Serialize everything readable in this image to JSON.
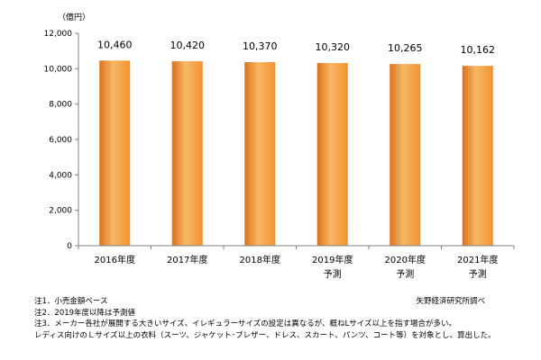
{
  "chart_data": {
    "type": "bar",
    "unit_label": "（億円）",
    "categories": [
      {
        "label": "2016年度",
        "sub": ""
      },
      {
        "label": "2017年度",
        "sub": ""
      },
      {
        "label": "2018年度",
        "sub": ""
      },
      {
        "label": "2019年度",
        "sub": "予測"
      },
      {
        "label": "2020年度",
        "sub": "予測"
      },
      {
        "label": "2021年度",
        "sub": "予測"
      }
    ],
    "values": [
      10460,
      10420,
      10370,
      10320,
      10265,
      10162
    ],
    "value_labels": [
      "10,460",
      "10,420",
      "10,370",
      "10,320",
      "10,265",
      "10,162"
    ],
    "ylim": [
      0,
      12000
    ],
    "yticks": [
      {
        "v": 0,
        "label": "0"
      },
      {
        "v": 2000,
        "label": "2,000"
      },
      {
        "v": 4000,
        "label": "4,000"
      },
      {
        "v": 6000,
        "label": "6,000"
      },
      {
        "v": 8000,
        "label": "8,000"
      },
      {
        "v": 10000,
        "label": "10,000"
      },
      {
        "v": 12000,
        "label": "12,000"
      }
    ],
    "grid": false,
    "bar_color": "#f0922e",
    "bar_color_light": "#f8b866",
    "bar_color_dark": "#d9731a"
  },
  "notes": [
    "注1．小売金額ベース",
    "注2．2019年度以降は予測値",
    "注3．メーカー各社が展開する大きいサイズ、イレギュラーサイズの設定は異なるが、概ねLサイズ以上を指す場合が多い。",
    "レディス向けのＬサイズ以上の衣料（スーツ、ジャケット･ブレザー、ドレス、スカート、パンツ、コート等）を対象とし、算出した。"
  ],
  "source": "矢野経済研究所調べ"
}
